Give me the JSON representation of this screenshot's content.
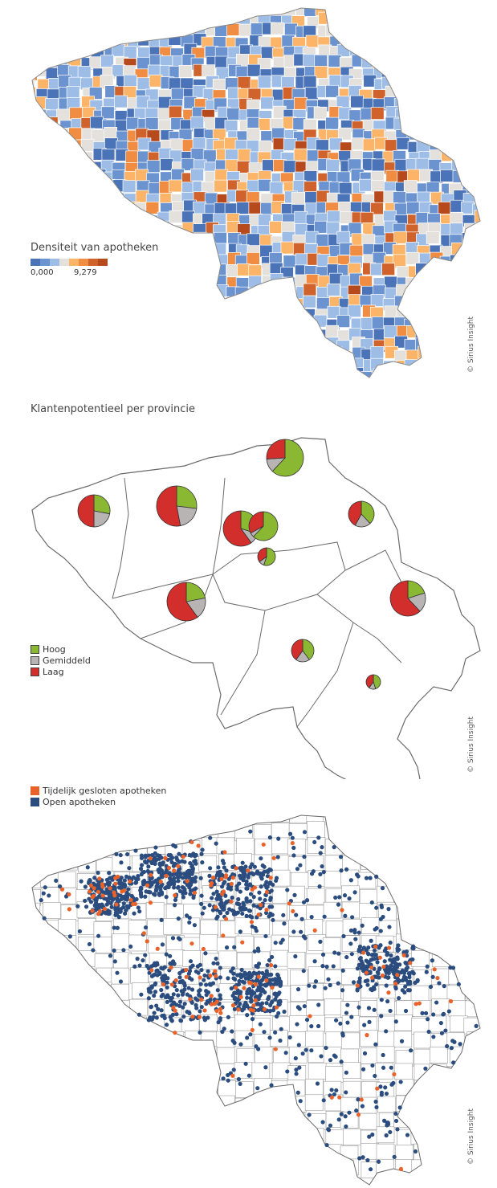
{
  "map1": {
    "legend_title": "Densiteit van apotheken",
    "scale_min": "0,000",
    "scale_max": "9,279",
    "colors": [
      "#4a73b8",
      "#6b93cf",
      "#9dbde6",
      "#e4e1dc",
      "#fbb468",
      "#f08d43",
      "#d0622c",
      "#b64a1d"
    ],
    "credit": "© Sirius Insight"
  },
  "map2": {
    "title": "Klantenpotentieel per provincie",
    "legend": [
      {
        "label": "Hoog",
        "color": "#8ab833"
      },
      {
        "label": "Gemiddeld",
        "color": "#b8b4b4"
      },
      {
        "label": "Laag",
        "color": "#d22e2c"
      }
    ],
    "credit": "© Sirius Insight"
  },
  "map3": {
    "legend": [
      {
        "label": "Tijdelijk gesloten apotheken",
        "color": "#e8622a"
      },
      {
        "label": "Open apotheken",
        "color": "#2b4c7e"
      }
    ],
    "credit": "© Sirius Insight"
  }
}
